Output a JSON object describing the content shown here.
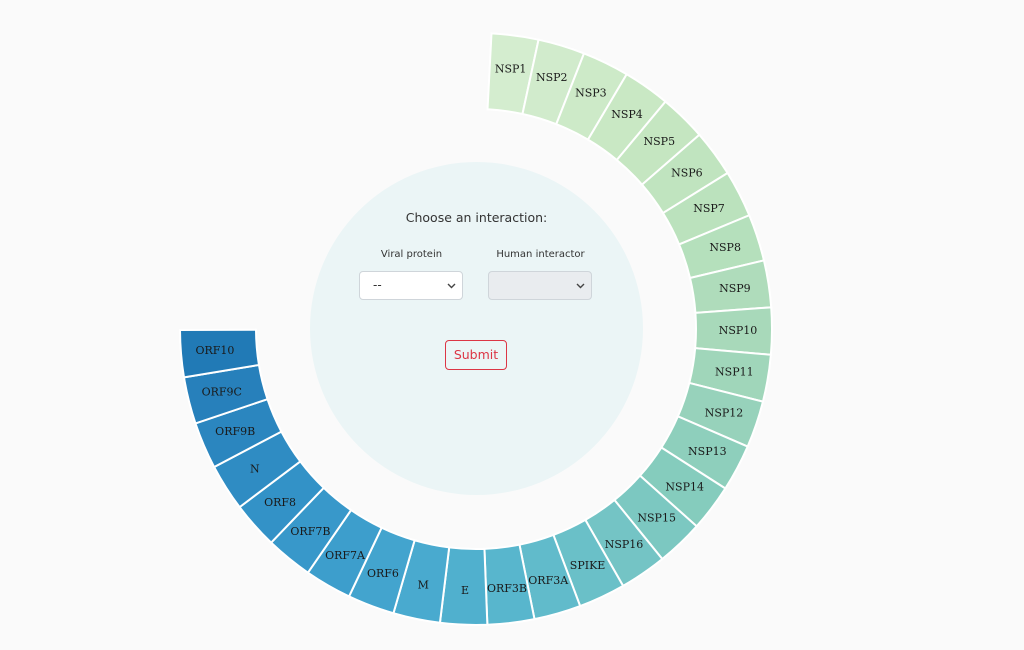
{
  "ring": {
    "start_angle_deg": 3,
    "segment_deg": 9.2,
    "segments": [
      {
        "label": "NSP1",
        "color": "#d4edcf"
      },
      {
        "label": "NSP2",
        "color": "#d1ebcc"
      },
      {
        "label": "NSP3",
        "color": "#cdeac8"
      },
      {
        "label": "NSP4",
        "color": "#c9e8c4"
      },
      {
        "label": "NSP5",
        "color": "#c5e6c1"
      },
      {
        "label": "NSP6",
        "color": "#c0e4bf"
      },
      {
        "label": "NSP7",
        "color": "#bbe2bd"
      },
      {
        "label": "NSP8",
        "color": "#b5e0bc"
      },
      {
        "label": "NSP9",
        "color": "#afdcbb"
      },
      {
        "label": "NSP10",
        "color": "#a8d9ba"
      },
      {
        "label": "NSP11",
        "color": "#a0d6ba"
      },
      {
        "label": "NSP12",
        "color": "#97d2bb"
      },
      {
        "label": "NSP13",
        "color": "#8ecfbc"
      },
      {
        "label": "NSP14",
        "color": "#85ccbd"
      },
      {
        "label": "NSP15",
        "color": "#7cc8c1"
      },
      {
        "label": "NSP16",
        "color": "#74c4c5"
      },
      {
        "label": "SPIKE",
        "color": "#6ac0c8"
      },
      {
        "label": "ORF3A",
        "color": "#61bbcb"
      },
      {
        "label": "ORF3B",
        "color": "#58b6cd"
      },
      {
        "label": "E",
        "color": "#50b0ce"
      },
      {
        "label": "M",
        "color": "#49aacf"
      },
      {
        "label": "ORF6",
        "color": "#43a4ce"
      },
      {
        "label": "ORF7A",
        "color": "#3d9ecc"
      },
      {
        "label": "ORF7B",
        "color": "#3898ca"
      },
      {
        "label": "ORF8",
        "color": "#3392c7"
      },
      {
        "label": "N",
        "color": "#2f8cc3"
      },
      {
        "label": "ORF9B",
        "color": "#2b86bf"
      },
      {
        "label": "ORF9C",
        "color": "#2780bb"
      },
      {
        "label": "ORF10",
        "color": "#217ab6"
      }
    ]
  },
  "form": {
    "title": "Choose an interaction:",
    "viral_label": "Viral protein",
    "viral_value": "--",
    "human_label": "Human interactor",
    "human_value": "",
    "submit_label": "Submit"
  }
}
